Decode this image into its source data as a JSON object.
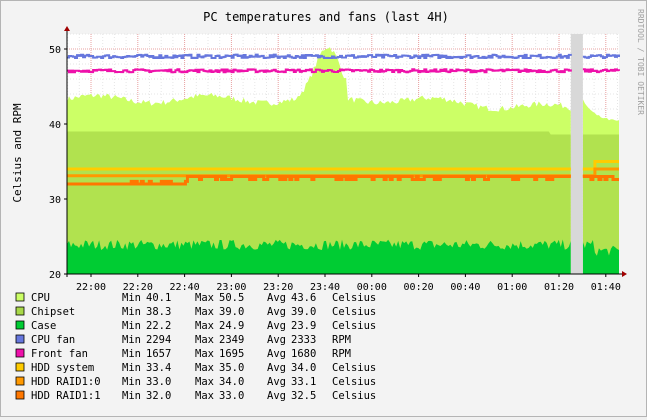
{
  "chart_data": {
    "type": "area",
    "title": "PC temperatures and fans (last 4H)",
    "ylabel": "Celsius and RPM",
    "watermark": "RRDTOOL / TOBI OETIKER",
    "ylim": [
      20,
      52
    ],
    "y_ticks": [
      "20",
      "30",
      "40",
      "50"
    ],
    "x_ticks": [
      "22:00",
      "22:20",
      "22:40",
      "23:00",
      "23:20",
      "23:40",
      "00:00",
      "00:20",
      "00:40",
      "01:00",
      "01:20",
      "01:40"
    ],
    "grid": true,
    "legend_position": "bottom",
    "series": [
      {
        "name": "CPU",
        "color": "#ccff66",
        "min": "40.1",
        "max": "50.5",
        "avg": "43.6",
        "unit": "Celsius",
        "min_v": 40.1,
        "max_v": 50.5,
        "avg_v": 43.6
      },
      {
        "name": "Chipset",
        "color": "#a8d848",
        "min": "38.3",
        "max": "39.0",
        "avg": "39.0",
        "unit": "Celsius",
        "min_v": 38.3,
        "max_v": 39.0,
        "avg_v": 39.0
      },
      {
        "name": "Case",
        "color": "#00cc33",
        "min": "22.2",
        "max": "24.9",
        "avg": "23.9",
        "unit": "Celsius",
        "min_v": 22.2,
        "max_v": 24.9,
        "avg_v": 23.9
      },
      {
        "name": "CPU fan",
        "color": "#6677dd",
        "min": "2294",
        "max": "2349",
        "avg": "2333",
        "unit": "RPM",
        "min_v": 48.8,
        "max_v": 49.4,
        "avg_v": 49.0
      },
      {
        "name": "Front fan",
        "color": "#ee11aa",
        "min": "1657",
        "max": "1695",
        "avg": "1680",
        "unit": "RPM",
        "min_v": 46.8,
        "max_v": 47.4,
        "avg_v": 47.1
      },
      {
        "name": "HDD system",
        "color": "#ffcc00",
        "min": "33.4",
        "max": "35.0",
        "avg": "34.0",
        "unit": "Celsius",
        "min_v": 33.4,
        "max_v": 35.0,
        "avg_v": 34.0
      },
      {
        "name": "HDD RAID1:0",
        "color": "#ff9900",
        "min": "33.0",
        "max": "34.0",
        "avg": "33.1",
        "unit": "Celsius",
        "min_v": 33.0,
        "max_v": 34.0,
        "avg_v": 33.1
      },
      {
        "name": "HDD RAID1:1",
        "color": "#ff7700",
        "min": "32.0",
        "max": "33.0",
        "avg": "32.5",
        "unit": "Celsius",
        "min_v": 32.0,
        "max_v": 33.0,
        "avg_v": 32.5
      }
    ]
  }
}
